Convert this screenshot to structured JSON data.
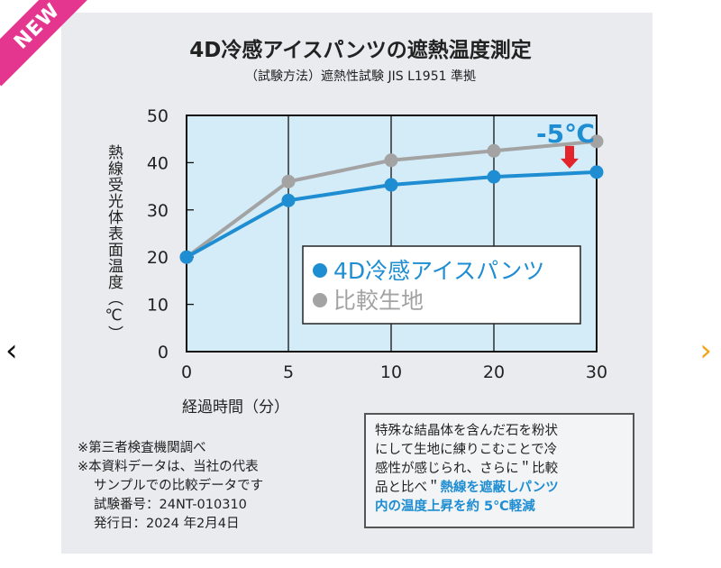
{
  "badge": "NEW",
  "nav": {
    "prev": "‹",
    "next": "›"
  },
  "chart_data": {
    "type": "line",
    "title": "4D冷感アイスパンツの遮熱温度測定",
    "subtitle": "（試験方法）遮熱性試験 JIS L1951 準拠",
    "xlabel": "経過時間（分）",
    "ylabel": "熱線受光体表面温度（℃）",
    "categories": [
      "0",
      "5",
      "10",
      "20",
      "30"
    ],
    "ylim": [
      0,
      50
    ],
    "yticks": [
      "0",
      "10",
      "20",
      "30",
      "40",
      "50"
    ],
    "grid": "vertical",
    "legend_position": "center-right",
    "series": [
      {
        "name": "4D冷感アイスパンツ",
        "color": "#1e8dd2",
        "values": [
          20,
          32,
          35.3,
          37,
          38
        ]
      },
      {
        "name": "比較生地",
        "color": "#a3a3a3",
        "values": [
          20,
          36,
          40.5,
          42.5,
          44.5
        ]
      }
    ],
    "annotation": {
      "text": "-5℃",
      "color": "#1e8dd2",
      "arrow_color": "#e3242b"
    },
    "plot_bg": "#d4ecf8"
  },
  "notes": [
    "※第三者検査機関調べ",
    "※本資料データは、当社の代表",
    "サンプルでの比較データです",
    "試験番号：24NT-010310",
    "発行日：2024 年2月4日"
  ],
  "description": {
    "line1": "特殊な結晶体を含んだ石を粉状",
    "line2": "にして生地に練りこむことで冷",
    "line3": "感性が感じられ、さらに＂比較",
    "line4a": "品と比べ＂",
    "line4b": "熱線を遮蔽しパンツ",
    "line5": "内の温度上昇を約 5℃軽減"
  }
}
